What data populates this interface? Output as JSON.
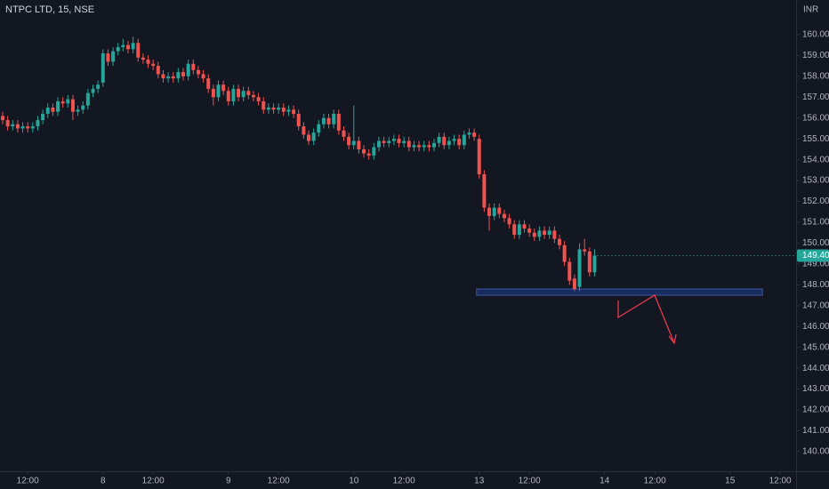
{
  "chart_data": {
    "type": "candlestick",
    "title": "NTPC LTD, 15, NSE",
    "currency": "INR",
    "up_color": "#26a69a",
    "down_color": "#ef5350",
    "grid": false,
    "xlim": [
      -0.53,
      158.17
    ],
    "ylim": [
      139.06,
      161.66
    ],
    "xticks": [
      {
        "value": 5,
        "label": "12:00"
      },
      {
        "value": 20,
        "label": "8"
      },
      {
        "value": 30,
        "label": "12:00"
      },
      {
        "value": 45,
        "label": "9"
      },
      {
        "value": 55,
        "label": "12:00"
      },
      {
        "value": 70,
        "label": "10"
      },
      {
        "value": 80,
        "label": "12:00"
      },
      {
        "value": 95,
        "label": "13"
      },
      {
        "value": 105,
        "label": "12:00"
      },
      {
        "value": 120,
        "label": "14"
      },
      {
        "value": 130,
        "label": "12:00"
      },
      {
        "value": 145,
        "label": "15"
      },
      {
        "value": 155,
        "label": "12:00"
      }
    ],
    "yticks": [
      {
        "value": 140,
        "label": "140.00"
      },
      {
        "value": 141,
        "label": "141.00"
      },
      {
        "value": 142,
        "label": "142.00"
      },
      {
        "value": 143,
        "label": "143.00"
      },
      {
        "value": 144,
        "label": "144.00"
      },
      {
        "value": 145,
        "label": "145.00"
      },
      {
        "value": 146,
        "label": "146.00"
      },
      {
        "value": 147,
        "label": "147.00"
      },
      {
        "value": 148,
        "label": "148.00"
      },
      {
        "value": 149,
        "label": "149.00"
      },
      {
        "value": 150,
        "label": "150.00"
      },
      {
        "value": 151,
        "label": "151.00"
      },
      {
        "value": 152,
        "label": "152.00"
      },
      {
        "value": 153,
        "label": "153.00"
      },
      {
        "value": 154,
        "label": "154.00"
      },
      {
        "value": 155,
        "label": "155.00"
      },
      {
        "value": 156,
        "label": "156.00"
      },
      {
        "value": 157,
        "label": "157.00"
      },
      {
        "value": 158,
        "label": "158.00"
      },
      {
        "value": 159,
        "label": "159.00"
      },
      {
        "value": 160,
        "label": "160.00"
      }
    ],
    "last_price": {
      "value": 149.4,
      "label": "149.40"
    },
    "zone": [
      147.5,
      147.8
    ],
    "open": [
      156.1,
      155.9,
      155.6,
      155.7,
      155.5,
      155.6,
      155.5,
      155.6,
      155.9,
      156.2,
      156.5,
      156.3,
      156.8,
      156.7,
      156.9,
      156.3,
      156.4,
      156.6,
      157.2,
      157.4,
      157.7,
      159.1,
      158.7,
      159.2,
      159.4,
      159.5,
      159.3,
      159.6,
      158.9,
      158.8,
      158.6,
      158.5,
      158.1,
      157.9,
      158.0,
      157.9,
      158.2,
      158.0,
      158.6,
      158.3,
      158.1,
      157.9,
      157.4,
      157.0,
      157.6,
      157.3,
      156.8,
      157.4,
      157.0,
      157.3,
      157.1,
      157.0,
      156.8,
      156.4,
      156.5,
      156.4,
      156.5,
      156.3,
      156.4,
      156.2,
      155.6,
      155.2,
      154.9,
      155.3,
      155.7,
      156.0,
      155.7,
      156.2,
      155.4,
      155.1,
      154.7,
      154.9,
      154.5,
      154.3,
      154.2,
      154.6,
      154.9,
      154.8,
      154.9,
      155.0,
      154.8,
      154.9,
      154.6,
      154.7,
      154.6,
      154.7,
      154.6,
      154.8,
      155.1,
      154.7,
      154.9,
      155.0,
      154.7,
      155.2,
      155.3,
      155.0,
      153.3,
      151.7,
      151.3,
      151.7,
      151.4,
      151.2,
      150.9,
      150.4,
      150.9,
      150.7,
      150.5,
      150.3,
      150.6,
      150.4,
      150.6,
      150.2,
      149.9,
      149.1,
      148.3,
      147.9,
      149.7,
      149.6,
      148.6
    ],
    "high": [
      156.3,
      156.1,
      155.9,
      155.9,
      155.8,
      155.8,
      155.8,
      156.1,
      156.4,
      156.7,
      156.7,
      157.0,
      157.0,
      157.1,
      157.1,
      156.6,
      156.8,
      157.4,
      157.6,
      157.8,
      159.3,
      159.3,
      159.4,
      159.6,
      159.8,
      159.7,
      159.9,
      159.8,
      159.1,
      159.0,
      158.8,
      158.7,
      158.3,
      158.2,
      158.2,
      158.4,
      158.4,
      158.8,
      158.8,
      158.5,
      158.3,
      158.1,
      157.6,
      157.8,
      157.8,
      157.5,
      157.6,
      157.6,
      157.5,
      157.5,
      157.3,
      157.2,
      157.0,
      156.7,
      156.7,
      156.7,
      156.7,
      156.6,
      156.6,
      156.4,
      155.8,
      155.4,
      155.5,
      155.9,
      156.2,
      156.2,
      156.4,
      156.4,
      155.6,
      155.3,
      156.6,
      155.1,
      154.7,
      154.5,
      154.8,
      155.1,
      155.1,
      155.1,
      155.2,
      155.2,
      155.1,
      155.1,
      154.9,
      154.9,
      154.9,
      154.9,
      155.0,
      155.3,
      155.3,
      155.1,
      155.2,
      155.2,
      155.4,
      155.5,
      155.5,
      155.2,
      153.5,
      151.9,
      151.9,
      151.9,
      151.6,
      151.4,
      151.1,
      151.1,
      151.1,
      150.9,
      150.7,
      150.8,
      150.8,
      150.8,
      150.8,
      150.4,
      150.1,
      149.3,
      148.5,
      150.0,
      150.2,
      149.8,
      149.7
    ],
    "low": [
      155.7,
      155.4,
      155.4,
      155.3,
      155.3,
      155.3,
      155.3,
      155.4,
      155.7,
      156.0,
      156.1,
      156.1,
      156.5,
      156.5,
      155.9,
      156.1,
      156.2,
      156.4,
      157.0,
      157.2,
      157.5,
      158.5,
      158.5,
      159.0,
      159.2,
      159.1,
      159.1,
      158.7,
      158.6,
      158.4,
      158.3,
      157.9,
      157.7,
      157.7,
      157.7,
      157.7,
      157.8,
      157.8,
      158.1,
      157.9,
      157.7,
      157.2,
      156.6,
      156.8,
      157.1,
      156.6,
      156.6,
      156.8,
      156.8,
      156.9,
      156.8,
      156.6,
      156.2,
      156.2,
      156.2,
      156.2,
      156.1,
      156.1,
      156.0,
      155.4,
      155.0,
      154.7,
      154.7,
      155.1,
      155.5,
      155.5,
      155.5,
      155.2,
      154.9,
      154.5,
      154.5,
      154.3,
      154.1,
      154.0,
      154.0,
      154.4,
      154.6,
      154.6,
      154.7,
      154.6,
      154.6,
      154.4,
      154.4,
      154.4,
      154.4,
      154.4,
      154.4,
      154.6,
      154.5,
      154.5,
      154.7,
      154.5,
      154.5,
      155.0,
      154.9,
      153.1,
      151.5,
      150.6,
      151.1,
      151.2,
      151.0,
      150.7,
      150.2,
      150.2,
      150.5,
      150.3,
      150.1,
      150.1,
      150.2,
      150.2,
      150.0,
      149.7,
      148.9,
      148.0,
      147.7,
      147.7,
      149.4,
      148.4,
      148.4
    ],
    "close": [
      155.9,
      155.6,
      155.7,
      155.5,
      155.6,
      155.5,
      155.6,
      155.9,
      156.2,
      156.5,
      156.3,
      156.8,
      156.7,
      156.9,
      156.3,
      156.4,
      156.6,
      157.2,
      157.4,
      157.6,
      159.1,
      158.7,
      159.2,
      159.4,
      159.5,
      159.3,
      159.6,
      158.9,
      158.8,
      158.6,
      158.5,
      158.1,
      157.9,
      158.0,
      157.9,
      158.2,
      158.0,
      158.6,
      158.3,
      158.1,
      157.9,
      157.4,
      157.0,
      157.6,
      157.3,
      156.8,
      157.4,
      157.0,
      157.3,
      157.1,
      157.0,
      156.8,
      156.4,
      156.5,
      156.4,
      156.5,
      156.3,
      156.4,
      156.2,
      155.6,
      155.2,
      154.9,
      155.3,
      155.7,
      156.0,
      155.7,
      156.2,
      155.4,
      155.1,
      154.7,
      154.9,
      154.5,
      154.3,
      154.2,
      154.6,
      154.9,
      154.8,
      154.9,
      155.0,
      154.8,
      154.9,
      154.6,
      154.7,
      154.6,
      154.7,
      154.6,
      154.8,
      155.1,
      154.7,
      154.9,
      155.0,
      154.7,
      155.2,
      155.3,
      155.1,
      153.3,
      151.7,
      151.3,
      151.7,
      151.4,
      151.2,
      150.9,
      150.4,
      150.9,
      150.7,
      150.5,
      150.3,
      150.6,
      150.4,
      150.6,
      150.2,
      149.9,
      149.1,
      148.2,
      147.8,
      149.7,
      149.6,
      148.6,
      149.4
    ]
  }
}
